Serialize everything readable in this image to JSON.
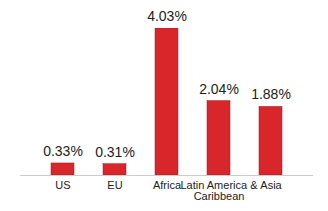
{
  "chart_data": {
    "type": "bar",
    "categories": [
      "US",
      "EU",
      "Africa",
      "Latin America & Caribbean",
      "Asia"
    ],
    "values": [
      0.33,
      0.31,
      4.03,
      2.04,
      1.88
    ],
    "value_labels": [
      "0.33%",
      "0.31%",
      "4.03%",
      "2.04%",
      "1.88%"
    ],
    "color": "#d8262a",
    "data_labels": true,
    "tick_labels": "x",
    "grid": false
  }
}
